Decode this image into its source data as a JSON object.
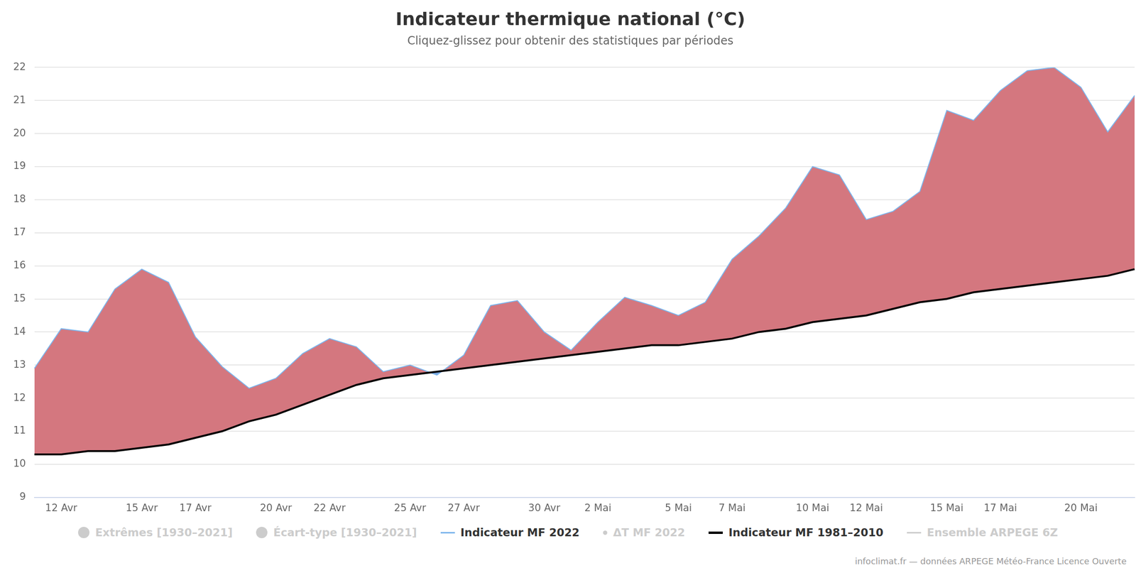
{
  "chart_data": {
    "type": "line",
    "title": "Indicateur thermique national (°C)",
    "subtitle": "Cliquez-glissez pour obtenir des statistiques par périodes",
    "credits": "infoclimat.fr — données ARPEGE Météo-France Licence Ouverte",
    "categories": [
      null,
      "12 Avr",
      null,
      null,
      "15 Avr",
      null,
      "17 Avr",
      null,
      null,
      "20 Avr",
      null,
      "22 Avr",
      null,
      null,
      "25 Avr",
      null,
      "27 Avr",
      null,
      null,
      "30 Avr",
      null,
      "2 Mai",
      null,
      null,
      "5 Mai",
      null,
      "7 Mai",
      null,
      null,
      "10 Mai",
      null,
      "12 Mai",
      null,
      null,
      "15 Mai",
      null,
      "17 Mai",
      null,
      null,
      "20 Mai",
      null,
      null
    ],
    "series": [
      {
        "name": "Indicateur MF 2022",
        "color": "#7cb5ec",
        "values": [
          12.9,
          14.1,
          14.0,
          15.3,
          15.9,
          15.5,
          13.85,
          12.95,
          12.3,
          12.6,
          13.35,
          13.8,
          13.55,
          12.8,
          13.0,
          12.7,
          13.3,
          14.8,
          14.95,
          14.0,
          13.45,
          14.3,
          15.05,
          14.8,
          14.5,
          14.9,
          16.2,
          16.9,
          17.75,
          19.0,
          18.75,
          17.4,
          17.65,
          18.25,
          20.7,
          20.4,
          21.3,
          21.9,
          22.0,
          21.4,
          20.05,
          21.15
        ]
      },
      {
        "name": "Indicateur MF 1981–2010",
        "color": "#000000",
        "values": [
          10.3,
          10.3,
          10.4,
          10.4,
          10.5,
          10.6,
          10.8,
          11.0,
          11.3,
          11.5,
          11.8,
          12.1,
          12.4,
          12.6,
          12.7,
          12.8,
          12.9,
          13.0,
          13.1,
          13.2,
          13.3,
          13.4,
          13.5,
          13.6,
          13.6,
          13.7,
          13.8,
          14.0,
          14.1,
          14.3,
          14.4,
          14.5,
          14.7,
          14.9,
          15.0,
          15.2,
          15.3,
          15.4,
          15.5,
          15.6,
          15.7,
          15.9
        ]
      }
    ],
    "fill_colors": {
      "above": "#d4777f",
      "below": "#7ba7e0"
    },
    "legend_entries": [
      {
        "name": "Extrêmes [1930–2021]",
        "marker": "circle"
      },
      {
        "name": "Écart-type [1930–2021]",
        "marker": "circle"
      },
      {
        "name": "Indicateur MF 2022",
        "marker": "line"
      },
      {
        "name": "ΔT MF 2022",
        "marker": "dot"
      },
      {
        "name": "Indicateur MF 1981–2010",
        "marker": "line"
      },
      {
        "name": "Ensemble ARPEGE 6Z",
        "marker": "line"
      }
    ],
    "legend": "bottom",
    "ylim": [
      9,
      22
    ],
    "yticks": [
      9,
      10,
      11,
      12,
      13,
      14,
      15,
      16,
      17,
      18,
      19,
      20,
      21,
      22
    ],
    "grid": true
  }
}
